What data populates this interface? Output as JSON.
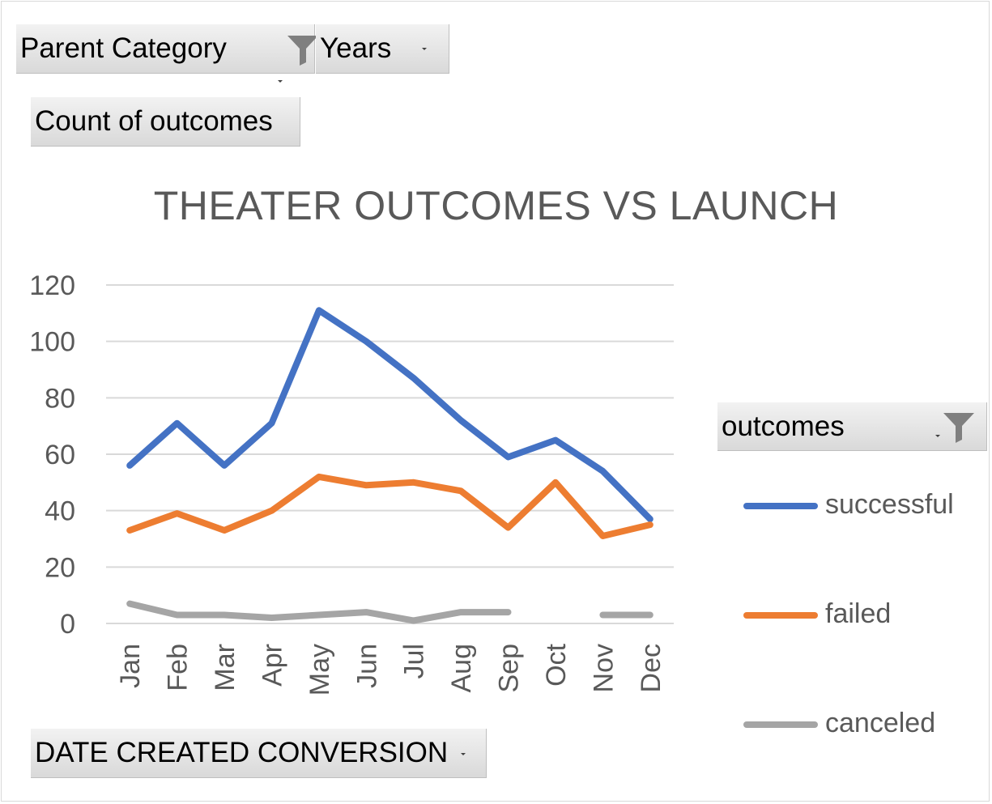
{
  "filters": {
    "parent_category": {
      "label": "Parent Category",
      "icon": "filter-icon"
    },
    "years": {
      "label": "Years"
    }
  },
  "value_field": {
    "label": "Count of outcomes"
  },
  "axis_field": {
    "label": "DATE CREATED CONVERSION"
  },
  "legend_field": {
    "label": "outcomes",
    "icon": "filter-icon"
  },
  "chart_data": {
    "type": "line",
    "title": "THEATER OUTCOMES VS LAUNCH",
    "xlabel": "",
    "ylabel": "",
    "categories": [
      "Jan",
      "Feb",
      "Mar",
      "Apr",
      "May",
      "Jun",
      "Jul",
      "Aug",
      "Sep",
      "Oct",
      "Nov",
      "Dec"
    ],
    "ylim": [
      0,
      120
    ],
    "yticks": [
      0,
      20,
      40,
      60,
      80,
      100,
      120
    ],
    "grid": true,
    "legend_position": "right",
    "series": [
      {
        "name": "successful",
        "color": "#4472c4",
        "values": [
          56,
          71,
          56,
          71,
          111,
          100,
          87,
          72,
          59,
          65,
          54,
          37
        ]
      },
      {
        "name": "failed",
        "color": "#ed7d31",
        "values": [
          33,
          39,
          33,
          40,
          52,
          49,
          50,
          47,
          34,
          50,
          31,
          35
        ]
      },
      {
        "name": "canceled",
        "color": "#a5a5a5",
        "values": [
          7,
          3,
          3,
          2,
          3,
          4,
          1,
          4,
          4,
          null,
          3,
          3
        ]
      }
    ]
  }
}
